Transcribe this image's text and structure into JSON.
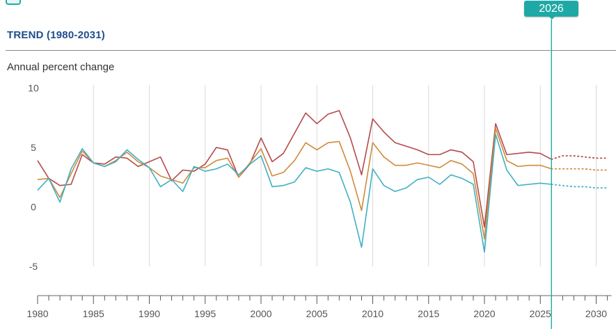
{
  "header": {
    "title": "TREND (1980-2031)",
    "units_label": "Annual percent change",
    "selected_year": "2026"
  },
  "colors": {
    "series_1": "#b5494b",
    "series_2": "#d08a3a",
    "series_3": "#3fb0c2",
    "accent": "#1fa9a6",
    "title": "#1f4e8c",
    "grid": "#d9d9d9"
  },
  "chart_data": {
    "type": "line",
    "title": "TREND (1980-2031)",
    "xlabel": "",
    "ylabel": "Annual percent change",
    "xlim": [
      1980,
      2031
    ],
    "ylim": [
      -7.5,
      10
    ],
    "y_ticks": [
      10,
      5,
      0,
      -5
    ],
    "x_ticks": [
      1980,
      1985,
      1990,
      1995,
      2000,
      2005,
      2010,
      2015,
      2020,
      2025,
      2030
    ],
    "grid": "vertical",
    "selected_year": 2026,
    "projection_from": 2026,
    "x": [
      1980,
      1981,
      1982,
      1983,
      1984,
      1985,
      1986,
      1987,
      1988,
      1989,
      1990,
      1991,
      1992,
      1993,
      1994,
      1995,
      1996,
      1997,
      1998,
      1999,
      2000,
      2001,
      2002,
      2003,
      2004,
      2005,
      2006,
      2007,
      2008,
      2009,
      2010,
      2011,
      2012,
      2013,
      2014,
      2015,
      2016,
      2017,
      2018,
      2019,
      2020,
      2021,
      2022,
      2023,
      2024,
      2025,
      2026,
      2027,
      2028,
      2029,
      2030,
      2031
    ],
    "series": [
      {
        "color": "#b5494b",
        "values": [
          3.9,
          2.4,
          1.8,
          1.9,
          4.4,
          3.7,
          3.6,
          4.2,
          4.1,
          3.4,
          3.8,
          4.2,
          2.2,
          3.1,
          3.0,
          3.6,
          5.0,
          4.8,
          2.5,
          3.6,
          5.8,
          3.8,
          4.5,
          6.2,
          7.9,
          7.0,
          7.8,
          8.1,
          5.8,
          2.7,
          7.4,
          6.3,
          5.4,
          5.1,
          4.8,
          4.4,
          4.4,
          4.8,
          4.6,
          3.8,
          -1.7,
          7.0,
          4.4,
          4.5,
          4.6,
          4.5,
          4.0,
          4.3,
          4.3,
          4.2,
          4.1,
          4.1
        ]
      },
      {
        "color": "#d08a3a",
        "values": [
          2.3,
          2.4,
          0.8,
          2.8,
          4.7,
          3.7,
          3.4,
          3.9,
          4.6,
          3.8,
          3.3,
          2.6,
          2.3,
          2.0,
          3.3,
          3.3,
          3.9,
          4.1,
          2.5,
          3.7,
          4.9,
          2.6,
          2.9,
          3.9,
          5.4,
          4.8,
          5.4,
          5.5,
          3.0,
          -0.3,
          5.4,
          4.2,
          3.5,
          3.5,
          3.7,
          3.5,
          3.3,
          3.9,
          3.6,
          2.8,
          -2.7,
          6.6,
          3.9,
          3.4,
          3.5,
          3.5,
          3.2,
          3.2,
          3.2,
          3.2,
          3.1,
          3.1
        ]
      },
      {
        "color": "#3fb0c2",
        "values": [
          1.4,
          2.4,
          0.4,
          3.2,
          4.9,
          3.7,
          3.4,
          3.8,
          4.8,
          4.0,
          3.3,
          1.7,
          2.3,
          1.3,
          3.4,
          3.0,
          3.2,
          3.6,
          2.7,
          3.6,
          4.3,
          1.7,
          1.8,
          2.1,
          3.3,
          3.0,
          3.2,
          2.9,
          0.4,
          -3.4,
          3.2,
          1.8,
          1.3,
          1.6,
          2.3,
          2.5,
          1.9,
          2.7,
          2.4,
          1.9,
          -3.8,
          6.1,
          3.1,
          1.8,
          1.9,
          2.0,
          1.9,
          1.8,
          1.7,
          1.7,
          1.6,
          1.6
        ]
      }
    ]
  }
}
